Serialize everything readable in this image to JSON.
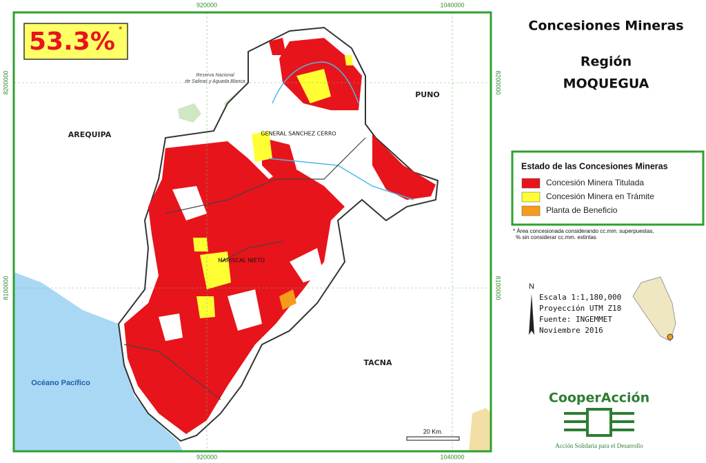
{
  "map": {
    "percentage": "53.3%",
    "percentage_note": "*",
    "places": [
      "AREQUIPA",
      "PUNO",
      "TACNA"
    ],
    "ocean": "Océano Pacífico",
    "provinces": [
      "GENERAL SANCHEZ CERRO",
      "MARISCAL NIETO"
    ],
    "reserve": [
      "Reserva Nacional",
      "de Salinas y Aguada Blanca"
    ],
    "scale_bar": "20 Km."
  },
  "coordinates": {
    "top": [
      "920000",
      "1040000"
    ],
    "bottom": [
      "920000",
      "1040000"
    ],
    "left": [
      "8200000",
      "8100000"
    ],
    "right": [
      "8200000",
      "8100000"
    ]
  },
  "title": {
    "main": "Concesiones Mineras",
    "region_label": "Región",
    "region_name": "MOQUEGUA"
  },
  "legend": {
    "title": "Estado de las Concesiones Mineras",
    "items": [
      {
        "label": "Concesión Minera Titulada",
        "color": "#e8141b"
      },
      {
        "label": "Concesión Minera en Trámite",
        "color": "#ffff33"
      },
      {
        "label": "Planta de Beneficio",
        "color": "#f59c1a"
      }
    ],
    "footnote": [
      "* Área concesionada considerando cc.mm. superpuestas,",
      "% sin considerar cc.mm. extintas"
    ]
  },
  "info": {
    "north": "N",
    "lines": [
      "Escala 1:1,180,000",
      "Proyección UTM Z18",
      "Fuente: INGEMMET",
      "Noviembre 2016"
    ]
  },
  "logo": {
    "name": "CooperAcción",
    "tagline": "Acción Solidaria para el Desarrollo"
  }
}
